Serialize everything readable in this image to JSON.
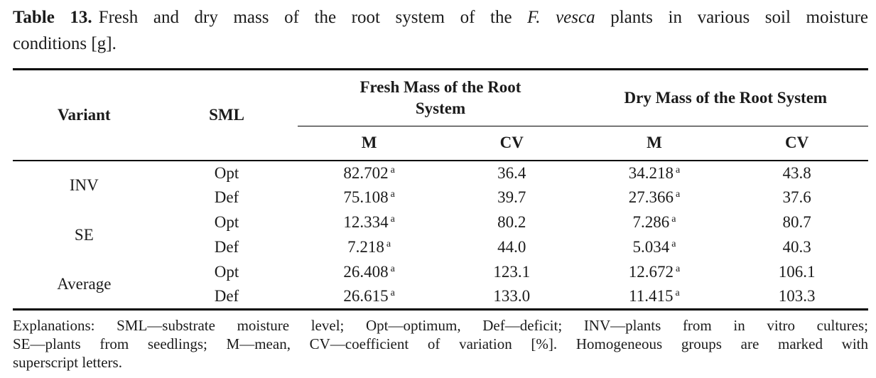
{
  "caption": {
    "label": "Table 13.",
    "line1_pre_italic": "Fresh and dry mass of the root system of the ",
    "line1_italic": "F. vesca",
    "line1_post_italic": " plants in various soil moisture",
    "line2": "conditions [g]."
  },
  "table": {
    "headers": {
      "variant": "Variant",
      "sml": "SML",
      "fresh_group": "Fresh Mass of the Root System",
      "dry_group": "Dry Mass of the Root System"
    },
    "subheaders": [
      "M",
      "CV",
      "M",
      "CV"
    ],
    "groups": [
      {
        "variant": "INV",
        "rows": [
          {
            "sml": "Opt",
            "fresh_m": "82.702",
            "fresh_m_sup": "a",
            "fresh_cv": "36.4",
            "dry_m": "34.218",
            "dry_m_sup": "a",
            "dry_cv": "43.8"
          },
          {
            "sml": "Def",
            "fresh_m": "75.108",
            "fresh_m_sup": "a",
            "fresh_cv": "39.7",
            "dry_m": "27.366",
            "dry_m_sup": "a",
            "dry_cv": "37.6"
          }
        ]
      },
      {
        "variant": "SE",
        "rows": [
          {
            "sml": "Opt",
            "fresh_m": "12.334",
            "fresh_m_sup": "a",
            "fresh_cv": "80.2",
            "dry_m": "7.286",
            "dry_m_sup": "a",
            "dry_cv": "80.7"
          },
          {
            "sml": "Def",
            "fresh_m": "7.218",
            "fresh_m_sup": "a",
            "fresh_cv": "44.0",
            "dry_m": "5.034",
            "dry_m_sup": "a",
            "dry_cv": "40.3"
          }
        ]
      },
      {
        "variant": "Average",
        "rows": [
          {
            "sml": "Opt",
            "fresh_m": "26.408",
            "fresh_m_sup": "a",
            "fresh_cv": "123.1",
            "dry_m": "12.672",
            "dry_m_sup": "a",
            "dry_cv": "106.1"
          },
          {
            "sml": "Def",
            "fresh_m": "26.615",
            "fresh_m_sup": "a",
            "fresh_cv": "133.0",
            "dry_m": "11.415",
            "dry_m_sup": "a",
            "dry_cv": "103.3"
          }
        ]
      }
    ]
  },
  "footnote": {
    "line1": "Explanations: SML—substrate moisture level; Opt—optimum, Def—deficit; INV—plants from in vitro cultures;",
    "line2": "SE—plants from seedlings; M—mean, CV—coefficient of variation [%]. Homogeneous groups are marked with",
    "line3": "superscript letters."
  }
}
